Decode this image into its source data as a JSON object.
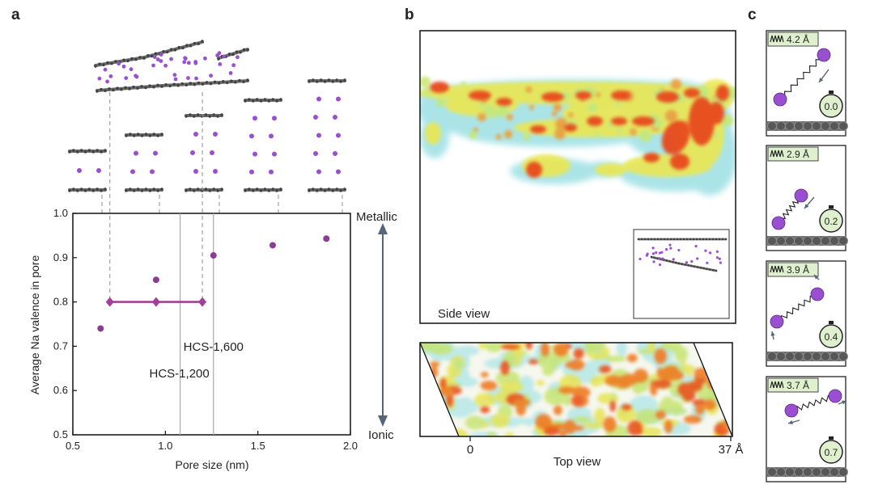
{
  "panels": {
    "a": "a",
    "b": "b",
    "c": "c"
  },
  "colors": {
    "series": "#a0409a",
    "point": "#8a3d92",
    "graphite": "#5a5a5a",
    "sodium": "#9a4fd0",
    "badge": "#dff0cf"
  },
  "chart_data": {
    "type": "scatter",
    "xlabel": "Pore size (nm)",
    "ylabel": "Average Na valence in pore",
    "xlim": [
      0.5,
      2.0
    ],
    "ylim": [
      0.5,
      1.0
    ],
    "xticks": [
      "0.5",
      "1.0",
      "1.5",
      "2.0"
    ],
    "yticks": [
      "0.5",
      "0.6",
      "0.7",
      "0.8",
      "0.9",
      "1.0"
    ],
    "points": [
      {
        "x": 0.65,
        "y": 0.74
      },
      {
        "x": 0.95,
        "y": 0.85
      },
      {
        "x": 1.26,
        "y": 0.905
      },
      {
        "x": 1.58,
        "y": 0.928
      },
      {
        "x": 1.87,
        "y": 0.943
      }
    ],
    "range_series": {
      "x": [
        0.7,
        0.95,
        1.2
      ],
      "y": 0.8
    },
    "vlines": [
      {
        "x": 1.08,
        "label": "HCS-1,200"
      },
      {
        "x": 1.26,
        "label": "HCS-1,600"
      }
    ],
    "arrow_top": "Metallic",
    "arrow_bottom": "Ionic"
  },
  "panel_b": {
    "side_label": "Side view",
    "top_label": "Top view",
    "scale_start": "0",
    "scale_end": "37 Å"
  },
  "panel_c": {
    "frames": [
      {
        "distance": "4.2 Å",
        "time": "0.0"
      },
      {
        "distance": "2.9 Å",
        "time": "0.2"
      },
      {
        "distance": "3.9 Å",
        "time": "0.4"
      },
      {
        "distance": "3.7 Å",
        "time": "0.7"
      }
    ]
  }
}
